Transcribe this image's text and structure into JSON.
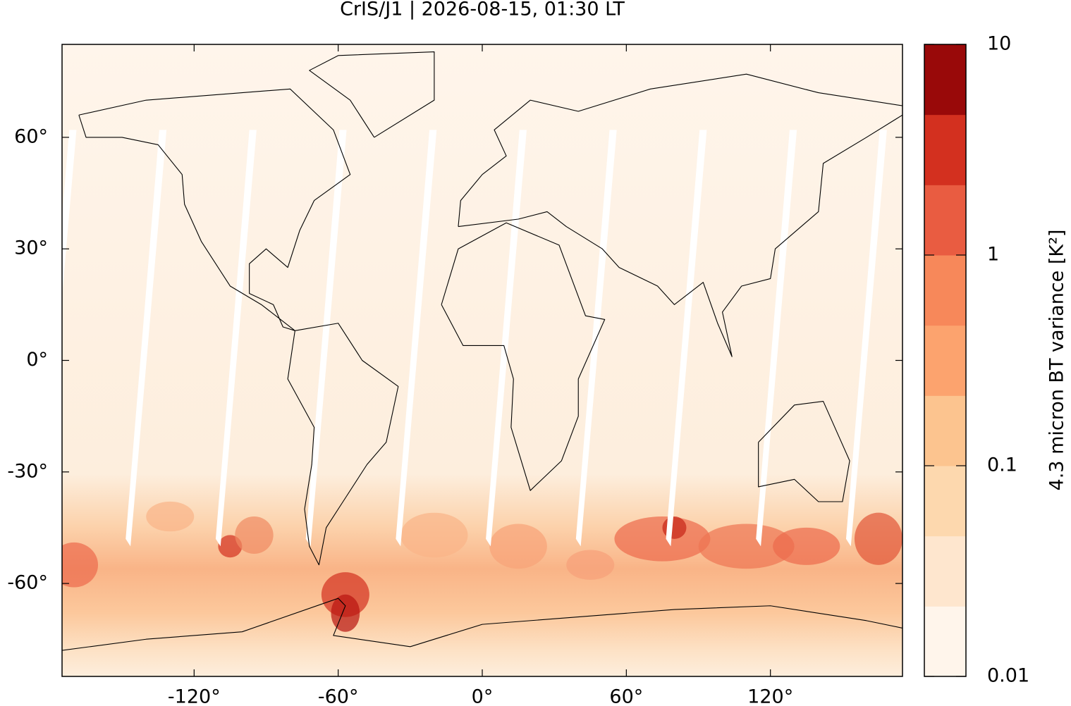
{
  "chart_data": {
    "type": "map",
    "title": "CrIS/J1 | 2026-08-15, 01:30 LT",
    "xlim": [
      -175,
      175
    ],
    "ylim": [
      -85,
      85
    ],
    "xticks": [
      {
        "value": -120,
        "label": "-120°"
      },
      {
        "value": -60,
        "label": "-60°"
      },
      {
        "value": 0,
        "label": "0°"
      },
      {
        "value": 60,
        "label": "60°"
      },
      {
        "value": 120,
        "label": "120°"
      }
    ],
    "yticks": [
      {
        "value": -60,
        "label": "-60°"
      },
      {
        "value": -30,
        "label": "-30°"
      },
      {
        "value": 0,
        "label": "0°"
      },
      {
        "value": 30,
        "label": "30°"
      },
      {
        "value": 60,
        "label": "60°"
      }
    ],
    "colorbar": {
      "label": "4.3 micron BT variance [K²]",
      "log": true,
      "clim": [
        0.01,
        10
      ],
      "ticks": [
        0.01,
        0.1,
        1,
        10
      ],
      "colors": [
        "#fff5eb",
        "#fee6ce",
        "#fdd8ae",
        "#fcc48f",
        "#fca36e",
        "#f7885a",
        "#e95c41",
        "#d3301f",
        "#990909"
      ]
    }
  }
}
